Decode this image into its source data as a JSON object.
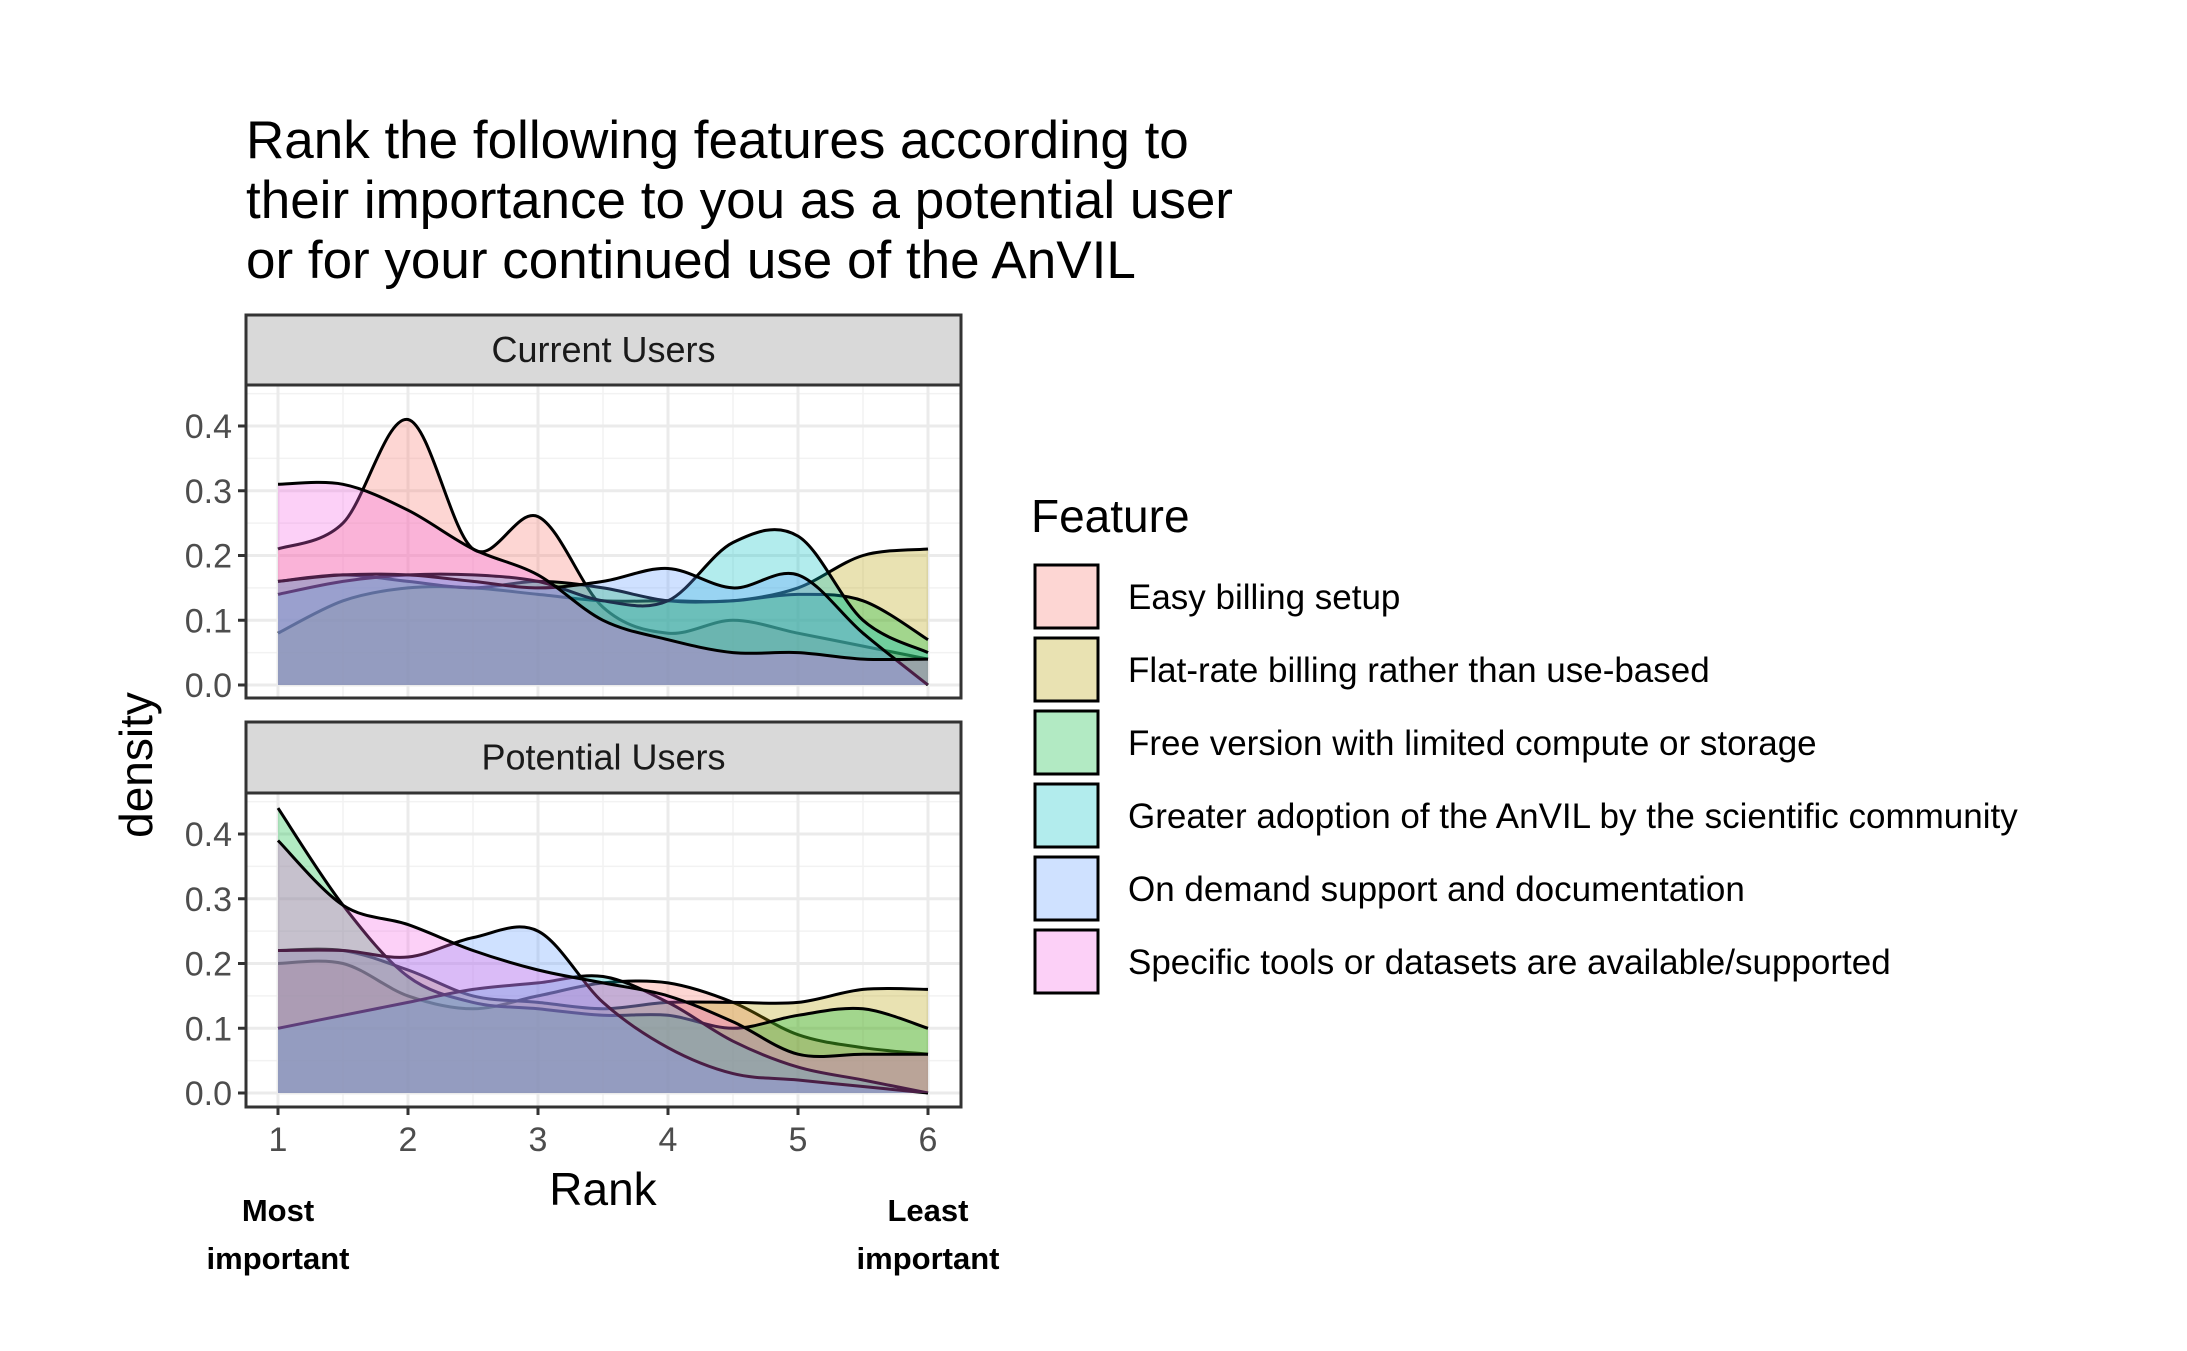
{
  "chart_data": {
    "type": "area",
    "title": [
      "Rank the following features according to",
      "their importance to you as a potential user",
      "or for your continued use of the AnVIL"
    ],
    "xlabel": "Rank",
    "ylabel": "density",
    "xlim": [
      1,
      6
    ],
    "ylim": [
      0,
      0.45
    ],
    "x_ticks": [
      "1",
      "2",
      "3",
      "4",
      "5",
      "6"
    ],
    "y_ticks": [
      "0.0",
      "0.1",
      "0.2",
      "0.3",
      "0.4"
    ],
    "x_annotations": {
      "left": [
        "Most",
        "important"
      ],
      "right": [
        "Least",
        "important"
      ]
    },
    "legend": {
      "title": "Feature",
      "position": "right"
    },
    "x": [
      1,
      1.5,
      2,
      2.5,
      3,
      3.5,
      4,
      4.5,
      5,
      5.5,
      6
    ],
    "series": [
      {
        "name": "Easy billing setup",
        "color": "#F8766D"
      },
      {
        "name": "Flat-rate billing rather than use-based",
        "color": "#B79F00"
      },
      {
        "name": "Free version with limited compute or storage",
        "color": "#00BA38"
      },
      {
        "name": "Greater adoption of the AnVIL by the scientific community",
        "color": "#00BFC4"
      },
      {
        "name": "On demand support and documentation",
        "color": "#619CFF"
      },
      {
        "name": "Specific tools or datasets are available/supported",
        "color": "#F564E3"
      }
    ],
    "panels": [
      {
        "label": "Current Users",
        "values": [
          [
            0.21,
            0.25,
            0.41,
            0.21,
            0.26,
            0.12,
            0.08,
            0.1,
            0.08,
            0.06,
            0.04
          ],
          [
            0.08,
            0.13,
            0.15,
            0.15,
            0.14,
            0.13,
            0.13,
            0.13,
            0.15,
            0.2,
            0.21
          ],
          [
            0.16,
            0.17,
            0.16,
            0.15,
            0.16,
            0.15,
            0.13,
            0.13,
            0.14,
            0.13,
            0.07
          ],
          [
            0.14,
            0.16,
            0.17,
            0.17,
            0.16,
            0.13,
            0.13,
            0.22,
            0.23,
            0.1,
            0.05
          ],
          [
            0.16,
            0.17,
            0.17,
            0.16,
            0.15,
            0.16,
            0.18,
            0.15,
            0.17,
            0.08,
            0.0
          ],
          [
            0.31,
            0.31,
            0.27,
            0.21,
            0.17,
            0.1,
            0.07,
            0.05,
            0.05,
            0.04,
            0.04
          ]
        ]
      },
      {
        "label": "Potential Users",
        "values": [
          [
            0.2,
            0.2,
            0.15,
            0.13,
            0.15,
            0.17,
            0.17,
            0.14,
            0.09,
            0.07,
            0.06
          ],
          [
            0.22,
            0.22,
            0.19,
            0.15,
            0.14,
            0.13,
            0.14,
            0.14,
            0.14,
            0.16,
            0.16
          ],
          [
            0.44,
            0.29,
            0.18,
            0.14,
            0.13,
            0.12,
            0.12,
            0.1,
            0.12,
            0.13,
            0.1
          ],
          [
            0.1,
            0.12,
            0.14,
            0.16,
            0.17,
            0.18,
            0.14,
            0.08,
            0.04,
            0.02,
            0.0
          ],
          [
            0.22,
            0.22,
            0.21,
            0.24,
            0.25,
            0.14,
            0.07,
            0.03,
            0.02,
            0.01,
            0.0
          ],
          [
            0.39,
            0.29,
            0.26,
            0.22,
            0.19,
            0.17,
            0.15,
            0.11,
            0.06,
            0.06,
            0.06
          ]
        ]
      }
    ]
  }
}
